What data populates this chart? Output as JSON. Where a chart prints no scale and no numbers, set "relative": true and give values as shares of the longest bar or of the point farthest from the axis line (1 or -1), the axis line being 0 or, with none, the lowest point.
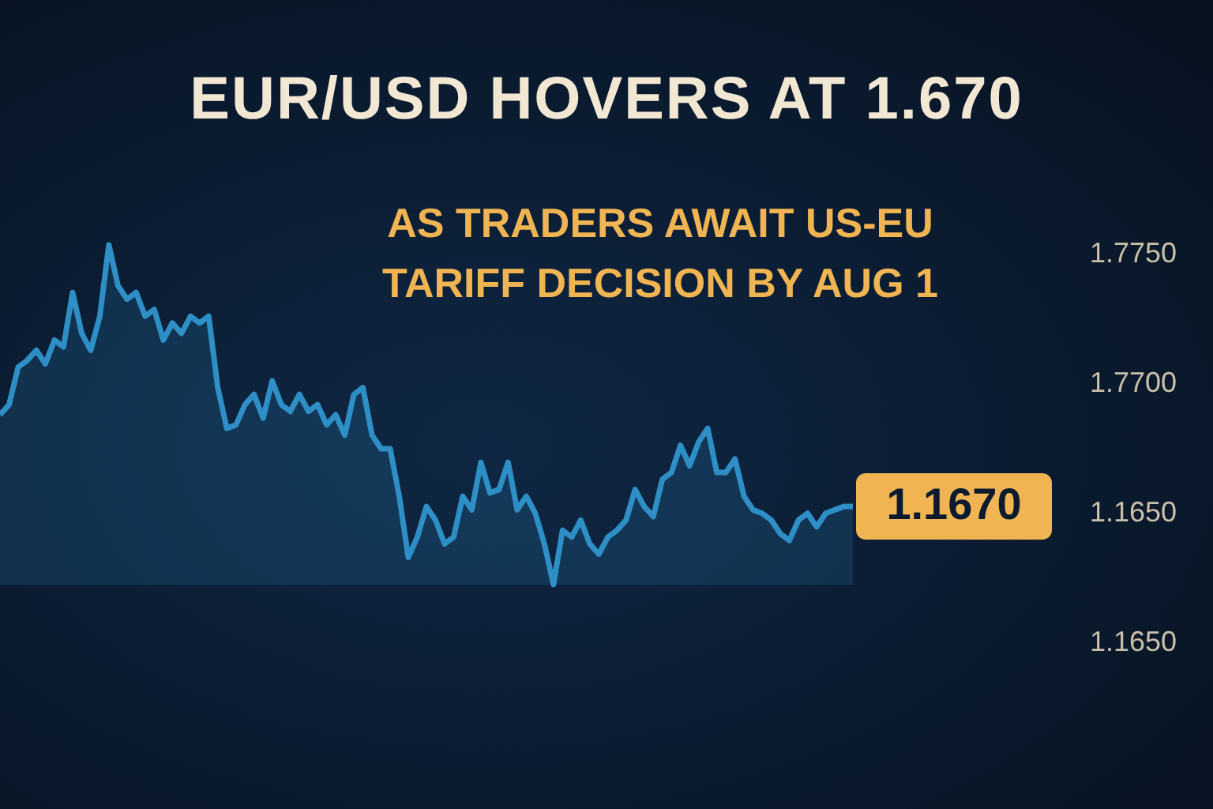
{
  "chart_data": {
    "type": "area",
    "title": "EUR/USD HOVERS AT 1.670",
    "subtitle": "AS TRADERS AWAIT US-EU TARIFF DECISION BY AUG 1",
    "relative": true,
    "categories": [
      null,
      null,
      null,
      null,
      null,
      null,
      null,
      null,
      null,
      null,
      null,
      null,
      null,
      null,
      null,
      null,
      null,
      null,
      null,
      null,
      null,
      null,
      null,
      null,
      null,
      null,
      null,
      null,
      null,
      null,
      null,
      null,
      null,
      null,
      null,
      null,
      null,
      null,
      null,
      null,
      null,
      null,
      null,
      null,
      null,
      null,
      null,
      null,
      null,
      null,
      null,
      null,
      null,
      null,
      null,
      null,
      null,
      null,
      null,
      null,
      null,
      null,
      null,
      null,
      null,
      null,
      null,
      null,
      null,
      null,
      null,
      null,
      null,
      null,
      null,
      null,
      null,
      null,
      null,
      null,
      null,
      null,
      null,
      null,
      null,
      null,
      null,
      null,
      null,
      null,
      null,
      null,
      null,
      null,
      null
    ],
    "series": [
      {
        "color": "#2e8fc6",
        "values": [
          0.5,
          0.53,
          0.64,
          0.66,
          0.69,
          0.65,
          0.72,
          0.7,
          0.86,
          0.74,
          0.69,
          0.79,
          1,
          0.88,
          0.84,
          0.86,
          0.79,
          0.81,
          0.72,
          0.77,
          0.74,
          0.79,
          0.77,
          0.79,
          0.58,
          0.46,
          0.47,
          0.53,
          0.56,
          0.49,
          0.6,
          0.53,
          0.51,
          0.56,
          0.51,
          0.53,
          0.47,
          0.5,
          0.44,
          0.56,
          0.58,
          0.44,
          0.4,
          0.4,
          0.26,
          0.08,
          0.14,
          0.23,
          0.19,
          0.12,
          0.14,
          0.26,
          0.22,
          0.36,
          0.27,
          0.28,
          0.36,
          0.22,
          0.26,
          0.21,
          0.12,
          0,
          0.16,
          0.14,
          0.19,
          0.12,
          0.09,
          0.14,
          0.16,
          0.19,
          0.28,
          0.23,
          0.2,
          0.31,
          0.33,
          0.41,
          0.35,
          0.42,
          0.46,
          0.33,
          0.33,
          0.37,
          0.26,
          0.22,
          0.21,
          0.19,
          0.15,
          0.13,
          0.19,
          0.21,
          0.17,
          0.21,
          0.22,
          0.23,
          0.23
        ]
      }
    ],
    "annotations": [
      "1.7750",
      "1.7700",
      "1.1650",
      "1.1650",
      "1.1670"
    ]
  }
}
